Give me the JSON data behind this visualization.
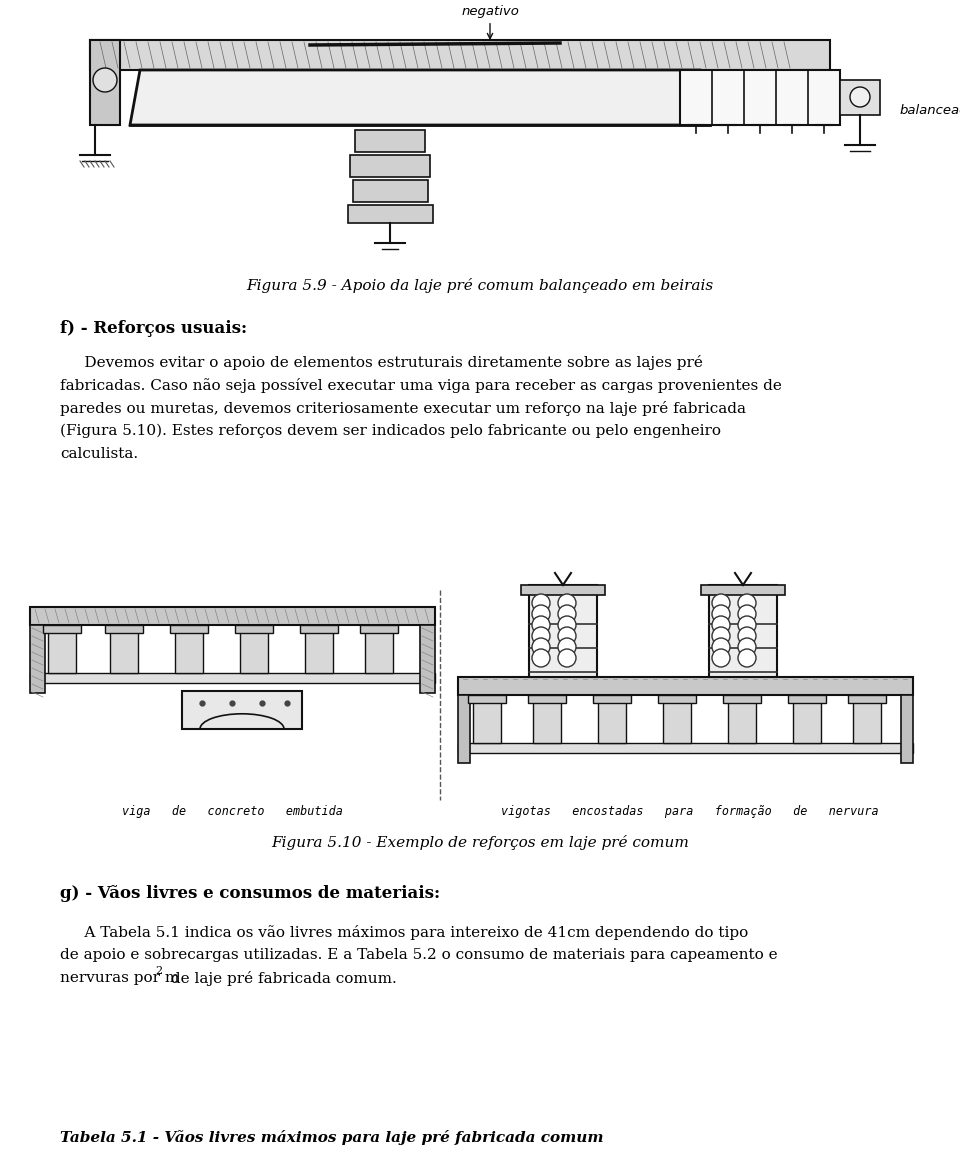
{
  "page_bg": "#ffffff",
  "fig_width": 9.6,
  "fig_height": 11.7,
  "dpi": 100,
  "fig59_caption": "Figura 5.9 - Apoio da laje pré comum balançeado em beirais",
  "section_f_title": "f) - Reforços usuais:",
  "para1_line1": "     Devemos evitar o apoio de elementos estruturais diretamente sobre as lajes pré",
  "para1_line2": "fabricadas. Caso não seja possível executar uma viga para receber as cargas provenientes de",
  "para1_line3": "paredes ou muretas, devemos criteriosamente executar um reforço na laje pré fabricada",
  "para1_line4": "(Figura 5.10). Estes reforços devem ser indicados pelo fabricante ou pelo engenheiro",
  "para1_line5": "calculista.",
  "label_left": "viga   de   concreto   embutida",
  "label_right": "vigotas   encostadas   para   formação   de   nervura",
  "fig510_caption": "Figura 5.10 - Exemplo de reforços em laje pré comum",
  "section_g_title": "g) - Vãos livres e consumos de materiais:",
  "para2_line1": "     A Tabela 5.1 indica os vão livres máximos para intereixo de 41cm dependendo do tipo",
  "para2_line2": "de apoio e sobrecargas utilizadas. E a Tabela 5.2 o consumo de materiais para capeamento e",
  "para2_line3_a": "nervuras por m",
  "para2_line3_b": "2",
  "para2_line3_c": " de laje pré fabricada comum.",
  "tabela_caption": "Tabela 5.1 - Vãos livres máximos para laje pré fabricada comum",
  "negativo_label": "negativo",
  "balanceado_label": "balanceado"
}
